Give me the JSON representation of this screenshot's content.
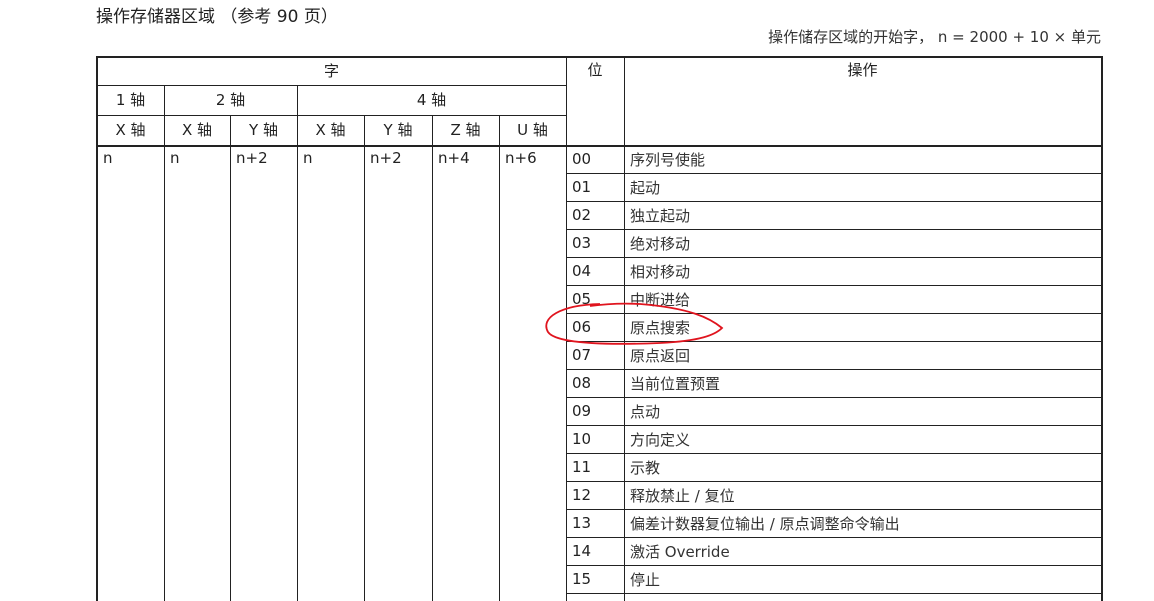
{
  "title": "操作存储器区域 （参考 90 页）",
  "subtitle": "操作储存区域的开始字， n = 2000 + 10 × 单元",
  "header": {
    "word": "字",
    "bit": "位",
    "operation": "操作",
    "axis_groups": [
      "1 轴",
      "2 轴",
      "4 轴"
    ],
    "axes": [
      "X 轴",
      "X 轴",
      "Y 轴",
      "X 轴",
      "Y 轴",
      "Z 轴",
      "U 轴"
    ]
  },
  "word_values": [
    "n",
    "n",
    "n+2",
    "n",
    "n+2",
    "n+4",
    "n+6"
  ],
  "rows": [
    {
      "bit": "00",
      "op": "序列号使能"
    },
    {
      "bit": "01",
      "op": "起动"
    },
    {
      "bit": "02",
      "op": "独立起动"
    },
    {
      "bit": "03",
      "op": "绝对移动"
    },
    {
      "bit": "04",
      "op": "相对移动"
    },
    {
      "bit": "05",
      "op": "中断进给"
    },
    {
      "bit": "06",
      "op": "原点搜索"
    },
    {
      "bit": "07",
      "op": "原点返回"
    },
    {
      "bit": "08",
      "op": "当前位置预置"
    },
    {
      "bit": "09",
      "op": "点动"
    },
    {
      "bit": "10",
      "op": "方向定义"
    },
    {
      "bit": "11",
      "op": "示教"
    },
    {
      "bit": "12",
      "op": "释放禁止 / 复位"
    },
    {
      "bit": "13",
      "op": "偏差计数器复位输出 / 原点调整命令输出"
    },
    {
      "bit": "14",
      "op": "激活 Override"
    },
    {
      "bit": "15",
      "op": "停止"
    }
  ],
  "annotation_color": "#e0141e"
}
